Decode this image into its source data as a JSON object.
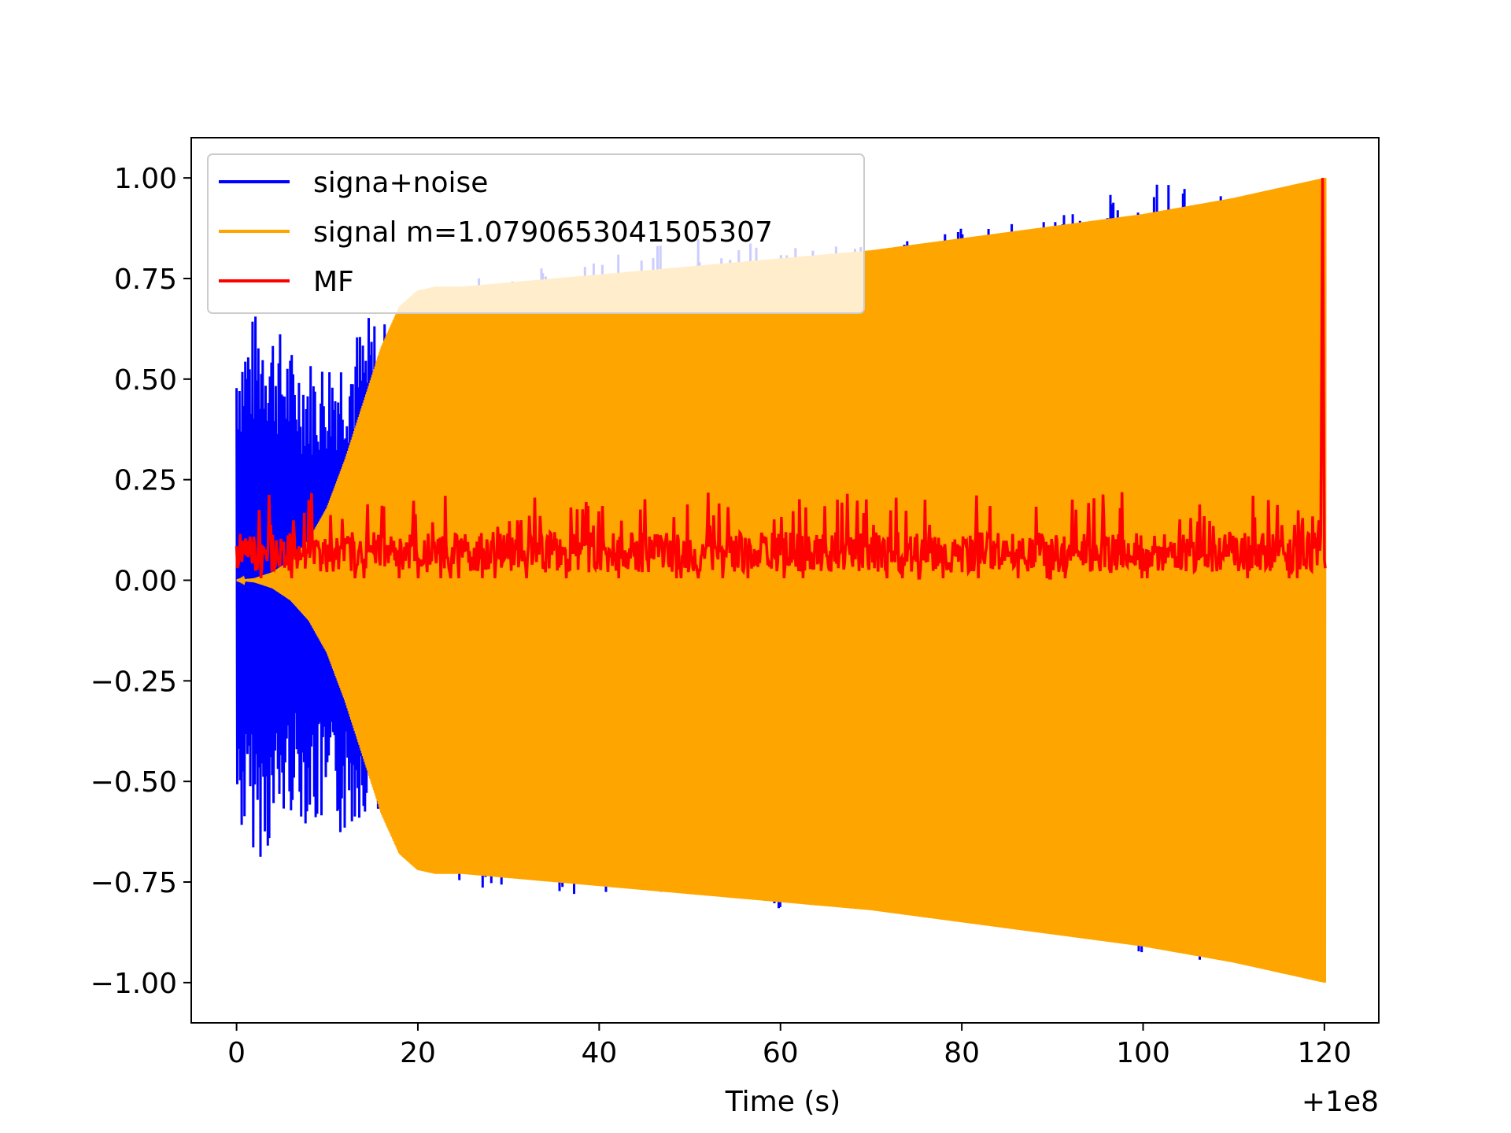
{
  "chart_data": {
    "type": "line",
    "title": "",
    "xlabel": "Time (s)",
    "ylabel": "",
    "x_offset_text": "+1e8",
    "xlim": [
      -5,
      126
    ],
    "ylim": [
      -1.1,
      1.1
    ],
    "x_ticks": [
      0,
      20,
      40,
      60,
      80,
      100,
      120
    ],
    "x_tick_labels": [
      "0",
      "20",
      "40",
      "60",
      "80",
      "100",
      "120"
    ],
    "y_ticks": [
      -1.0,
      -0.75,
      -0.5,
      -0.25,
      0.0,
      0.25,
      0.5,
      0.75,
      1.0
    ],
    "y_tick_labels": [
      "−1.00",
      "−0.75",
      "−0.50",
      "−0.25",
      "0.00",
      "0.25",
      "0.50",
      "0.75",
      "1.00"
    ],
    "grid": false,
    "legend_position": "upper-left",
    "colors": {
      "signal_noise": "#0000ff",
      "signal": "#ffa500",
      "mf": "#ff0000"
    },
    "series": [
      {
        "name": "signa+noise",
        "color": "#0000ff",
        "envelope": {
          "x": [
            0,
            3,
            6,
            9,
            12,
            15,
            18,
            20,
            30,
            40,
            50,
            60,
            70,
            80,
            90,
            100,
            110,
            120
          ],
          "upper": [
            0.62,
            0.69,
            0.58,
            0.55,
            0.6,
            0.67,
            0.62,
            0.73,
            0.78,
            0.8,
            0.86,
            0.84,
            0.83,
            0.88,
            0.9,
            1.0,
            0.95,
            0.99
          ],
          "lower": [
            -0.63,
            -0.7,
            -0.58,
            -0.63,
            -0.65,
            -0.55,
            -0.65,
            -0.73,
            -0.78,
            -0.78,
            -0.78,
            -0.82,
            -0.83,
            -0.85,
            -0.88,
            -0.93,
            -0.96,
            -0.99
          ]
        }
      },
      {
        "name": "signal m=1.0790653041505307",
        "color": "#ffa500",
        "envelope": {
          "x": [
            0,
            2,
            4,
            6,
            8,
            10,
            12,
            14,
            16,
            18,
            20,
            22,
            25,
            30,
            40,
            50,
            60,
            70,
            80,
            90,
            100,
            110,
            120
          ],
          "upper": [
            0.0,
            0.005,
            0.02,
            0.05,
            0.1,
            0.18,
            0.3,
            0.44,
            0.58,
            0.68,
            0.72,
            0.73,
            0.73,
            0.74,
            0.76,
            0.78,
            0.8,
            0.82,
            0.85,
            0.88,
            0.91,
            0.95,
            1.0
          ],
          "lower": [
            0.0,
            -0.005,
            -0.02,
            -0.05,
            -0.1,
            -0.18,
            -0.3,
            -0.44,
            -0.58,
            -0.68,
            -0.72,
            -0.73,
            -0.73,
            -0.74,
            -0.76,
            -0.78,
            -0.8,
            -0.82,
            -0.85,
            -0.88,
            -0.91,
            -0.95,
            -1.0
          ]
        }
      },
      {
        "name": "MF",
        "color": "#ff0000",
        "baseline": 0.07,
        "range": [
          0.0,
          0.22
        ],
        "peak": {
          "x": 119.8,
          "y": 1.0
        }
      }
    ]
  }
}
